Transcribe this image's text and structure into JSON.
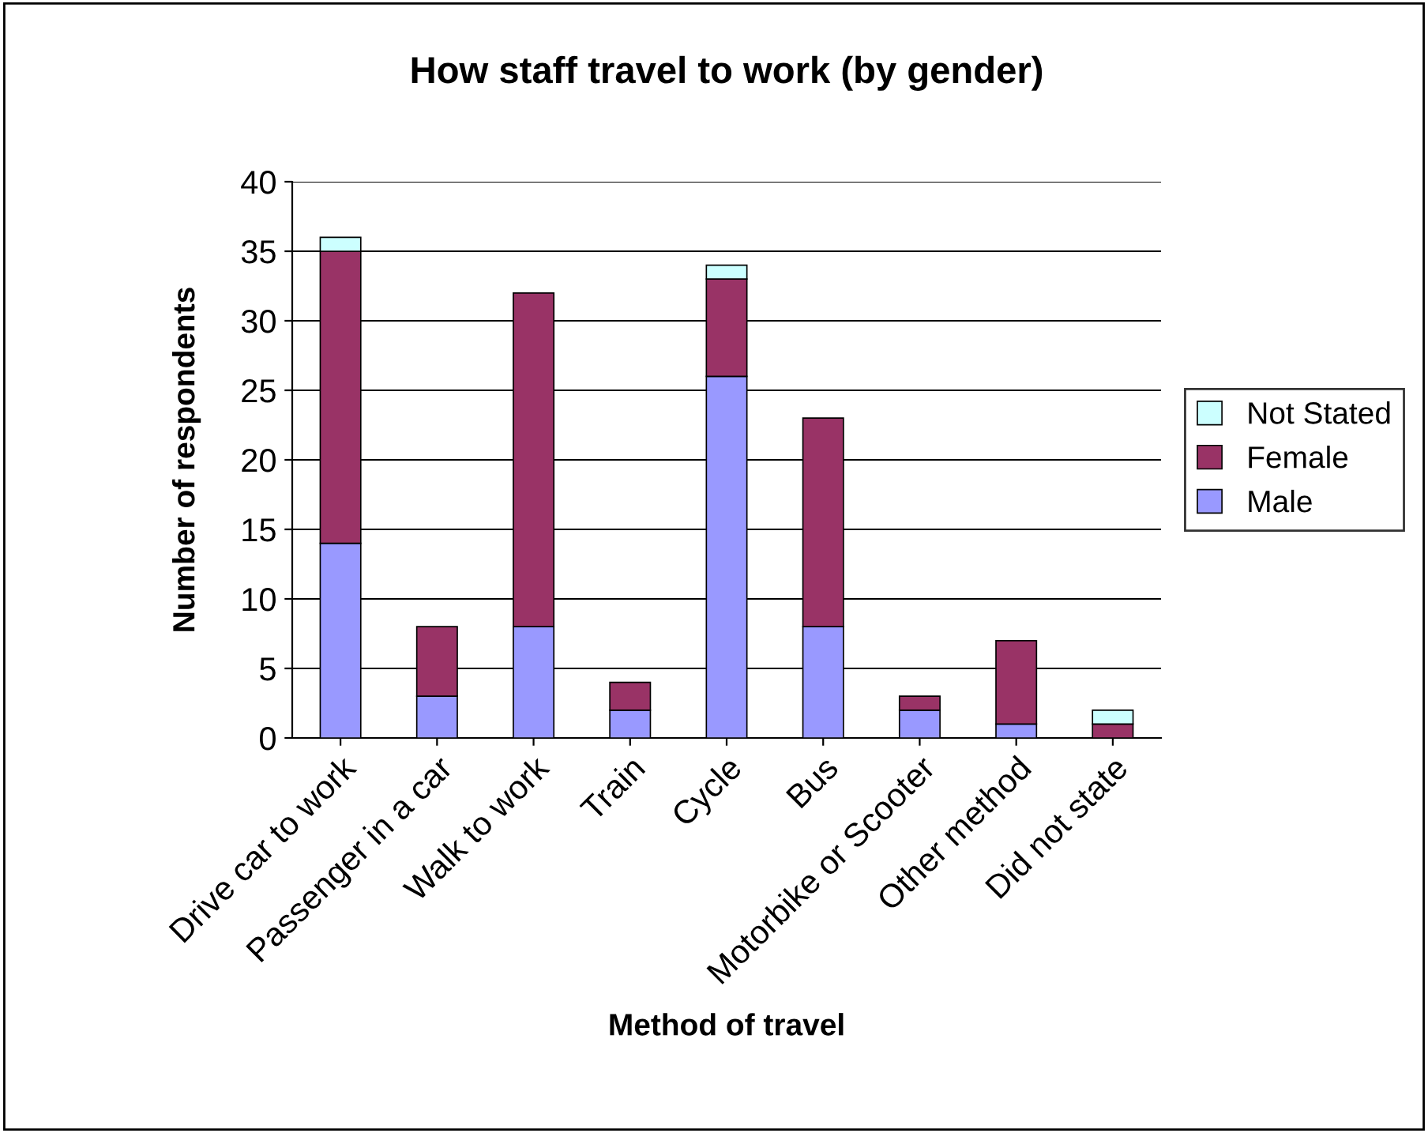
{
  "chart_data": {
    "type": "bar",
    "title": "How staff travel to work (by gender)",
    "xlabel": "Method of travel",
    "ylabel": "Number of respondents",
    "categories": [
      "Drive car to work",
      "Passenger in a car",
      "Walk to work",
      "Train",
      "Cycle",
      "Bus",
      "Motorbike or Scooter",
      "Other method",
      "Did not state"
    ],
    "stacked": true,
    "series": [
      {
        "name": "Male",
        "color": "#9999ff",
        "values": [
          14,
          3,
          8,
          2,
          26,
          8,
          2,
          1,
          0
        ]
      },
      {
        "name": "Female",
        "color": "#993366",
        "values": [
          21,
          5,
          24,
          2,
          7,
          15,
          1,
          6,
          1
        ]
      },
      {
        "name": "Not Stated",
        "color": "#ccffff",
        "values": [
          1,
          0,
          0,
          0,
          1,
          0,
          0,
          0,
          1
        ]
      }
    ],
    "ylim": [
      0,
      40
    ],
    "yticks": [
      0,
      5,
      10,
      15,
      20,
      25,
      30,
      35,
      40
    ],
    "grid": "y",
    "legend": "right"
  }
}
